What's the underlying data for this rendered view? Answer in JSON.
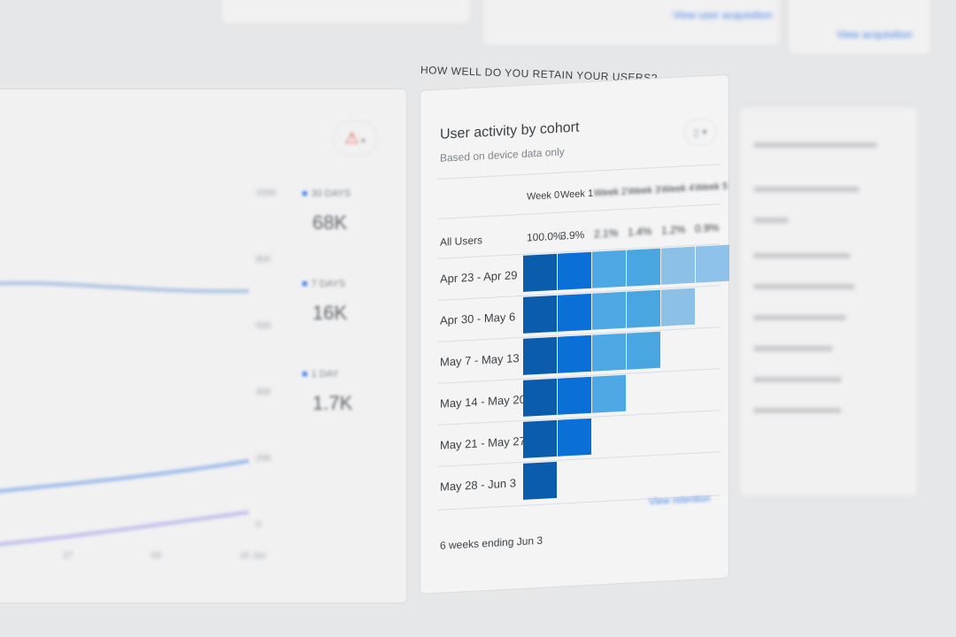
{
  "top": {
    "link_1": "View user acquisition",
    "link_2": "View acquisition"
  },
  "left_card": {
    "alert_icon": "warning-triangle-icon",
    "y_ticks": [
      "100K",
      "80K",
      "60K",
      "40K",
      "20K",
      "0"
    ],
    "x_ticks": [
      "27",
      "03",
      "10 Jun"
    ],
    "legend": [
      {
        "label": "30 DAYS",
        "value": "68K"
      },
      {
        "label": "7 DAYS",
        "value": "16K"
      },
      {
        "label": "1 DAY",
        "value": "1.7K"
      }
    ],
    "series_color": "#4a86e8"
  },
  "section_heading": "HOW WELL DO YOU RETAIN YOUR USERS?",
  "cohort": {
    "title": "User activity by cohort",
    "subtitle": "Based on device data only",
    "device_icon": "device-icon",
    "columns": [
      "Week 0",
      "Week 1",
      "Week 2",
      "Week 3",
      "Week 4",
      "Week 5"
    ],
    "all_users_label": "All Users",
    "all_users_values": [
      "100.0%",
      "3.9%",
      "2.1%",
      "1.4%",
      "1.2%",
      "0.9%"
    ],
    "rows": [
      {
        "label": "Apr 23 - Apr 29",
        "cells": 6
      },
      {
        "label": "Apr 30 - May 6",
        "cells": 5
      },
      {
        "label": "May 7 - May 13",
        "cells": 4
      },
      {
        "label": "May 14 - May 20",
        "cells": 3
      },
      {
        "label": "May 21 - May 27",
        "cells": 2
      },
      {
        "label": "May 28 - Jun 3",
        "cells": 1
      }
    ],
    "cell_colors": [
      "#0b5cad",
      "#0a6fd6",
      "#4ea8e6",
      "#4aa6e0",
      "#8dc0e6",
      "#8ec2ea"
    ],
    "footer": "6 weeks ending Jun 3",
    "view_link": "View retention"
  }
}
